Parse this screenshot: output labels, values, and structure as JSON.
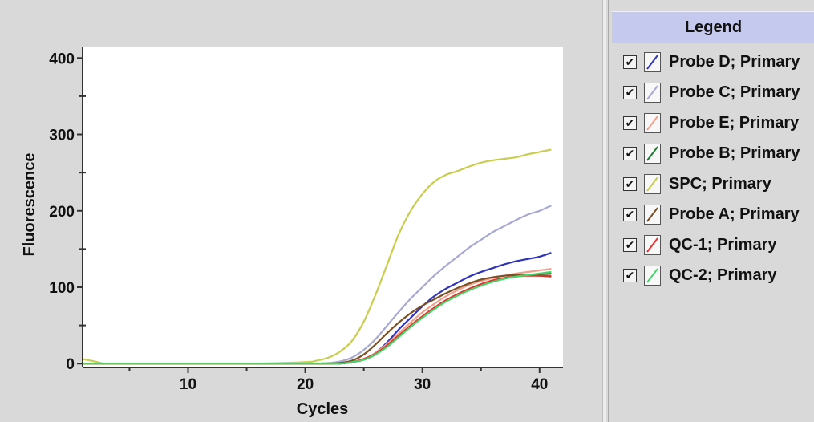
{
  "legend": {
    "title": "Legend",
    "items": [
      {
        "label": "Probe D; Primary",
        "color": "#2f35b6",
        "checked": "✔"
      },
      {
        "label": "Probe C; Primary",
        "color": "#a7a9d2",
        "checked": "✔"
      },
      {
        "label": "Probe E; Primary",
        "color": "#f0a08a",
        "checked": "✔"
      },
      {
        "label": "Probe B; Primary",
        "color": "#1f7a33",
        "checked": "✔"
      },
      {
        "label": "SPC; Primary",
        "color": "#c9cc4e",
        "checked": "✔"
      },
      {
        "label": "Probe A; Primary",
        "color": "#7a4f24",
        "checked": "✔"
      },
      {
        "label": "QC-1; Primary",
        "color": "#e53030",
        "checked": "✔"
      },
      {
        "label": "QC-2; Primary",
        "color": "#45d66a",
        "checked": "✔"
      }
    ]
  },
  "chart_data": {
    "type": "line",
    "xlabel": "Cycles",
    "ylabel": "Fluorescence",
    "xlim": [
      1,
      42
    ],
    "ylim": [
      -5,
      415
    ],
    "xticks": [
      10,
      20,
      30,
      40
    ],
    "yticks": [
      0,
      100,
      200,
      300,
      400
    ],
    "grid": false,
    "legend_position": "right",
    "series": [
      {
        "name": "Probe D; Primary",
        "color": "#2f35b6",
        "x": [
          1,
          5,
          10,
          15,
          20,
          22,
          23,
          24,
          25,
          26,
          27,
          28,
          29,
          30,
          31,
          32,
          33,
          34,
          35,
          36,
          37,
          38,
          39,
          40,
          41
        ],
        "y": [
          0,
          0,
          0,
          0,
          0,
          0,
          0,
          2,
          6,
          14,
          28,
          45,
          60,
          75,
          88,
          98,
          106,
          114,
          120,
          125,
          130,
          134,
          137,
          140,
          145
        ]
      },
      {
        "name": "Probe C; Primary",
        "color": "#a7a9d2",
        "x": [
          1,
          5,
          10,
          15,
          20,
          22,
          23,
          24,
          25,
          26,
          27,
          28,
          29,
          30,
          31,
          32,
          33,
          34,
          35,
          36,
          37,
          38,
          39,
          40,
          41
        ],
        "y": [
          0,
          0,
          0,
          0,
          0,
          1,
          3,
          8,
          18,
          32,
          50,
          68,
          85,
          100,
          115,
          128,
          140,
          152,
          162,
          172,
          180,
          188,
          195,
          200,
          207
        ]
      },
      {
        "name": "Probe E; Primary",
        "color": "#f0a08a",
        "x": [
          1,
          5,
          10,
          15,
          20,
          22,
          23,
          24,
          25,
          26,
          27,
          28,
          29,
          30,
          31,
          32,
          33,
          34,
          35,
          36,
          37,
          38,
          39,
          40,
          41
        ],
        "y": [
          0,
          0,
          0,
          0,
          0,
          0,
          0,
          2,
          6,
          14,
          26,
          40,
          54,
          67,
          78,
          88,
          96,
          103,
          108,
          112,
          115,
          118,
          120,
          122,
          124
        ]
      },
      {
        "name": "Probe B; Primary",
        "color": "#1f7a33",
        "x": [
          1,
          5,
          10,
          15,
          20,
          22,
          23,
          24,
          25,
          26,
          27,
          28,
          29,
          30,
          31,
          32,
          33,
          34,
          35,
          36,
          37,
          38,
          39,
          40,
          41
        ],
        "y": [
          0,
          0,
          0,
          0,
          0,
          0,
          0,
          2,
          5,
          12,
          23,
          36,
          49,
          61,
          72,
          82,
          90,
          97,
          103,
          108,
          112,
          114,
          116,
          117,
          118
        ]
      },
      {
        "name": "SPC; Primary",
        "color": "#c9cc4e",
        "x": [
          1,
          2,
          3,
          5,
          10,
          15,
          20,
          21,
          22,
          23,
          24,
          25,
          26,
          27,
          28,
          29,
          30,
          31,
          32,
          33,
          34,
          35,
          36,
          37,
          38,
          39,
          40,
          41
        ],
        "y": [
          6,
          3,
          0,
          0,
          0,
          0,
          2,
          4,
          8,
          16,
          30,
          55,
          90,
          130,
          170,
          200,
          222,
          238,
          247,
          252,
          258,
          263,
          266,
          268,
          270,
          274,
          277,
          280
        ]
      },
      {
        "name": "Probe A; Primary",
        "color": "#7a4f24",
        "x": [
          1,
          5,
          10,
          15,
          20,
          22,
          23,
          24,
          25,
          26,
          27,
          28,
          29,
          30,
          31,
          32,
          33,
          34,
          35,
          36,
          37,
          38,
          39,
          40,
          41
        ],
        "y": [
          0,
          0,
          0,
          0,
          0,
          0,
          1,
          4,
          12,
          25,
          40,
          54,
          66,
          76,
          84,
          92,
          99,
          105,
          110,
          113,
          115,
          116,
          116,
          115,
          114
        ]
      },
      {
        "name": "QC-1; Primary",
        "color": "#e53030",
        "x": [
          1,
          5,
          10,
          15,
          20,
          22,
          23,
          24,
          25,
          26,
          27,
          28,
          29,
          30,
          31,
          32,
          33,
          34,
          35,
          36,
          37,
          38,
          39,
          40,
          41
        ],
        "y": [
          0,
          0,
          0,
          0,
          0,
          0,
          0,
          2,
          6,
          13,
          24,
          37,
          50,
          62,
          73,
          83,
          91,
          98,
          104,
          109,
          112,
          114,
          115,
          115,
          115
        ]
      },
      {
        "name": "QC-2; Primary",
        "color": "#45d66a",
        "x": [
          1,
          5,
          10,
          15,
          20,
          22,
          23,
          24,
          25,
          26,
          27,
          28,
          29,
          30,
          31,
          32,
          33,
          34,
          35,
          36,
          37,
          38,
          39,
          40,
          41
        ],
        "y": [
          0,
          0,
          0,
          0,
          0,
          0,
          0,
          2,
          5,
          12,
          22,
          35,
          48,
          60,
          71,
          81,
          89,
          96,
          102,
          107,
          111,
          114,
          116,
          118,
          120
        ]
      }
    ]
  }
}
